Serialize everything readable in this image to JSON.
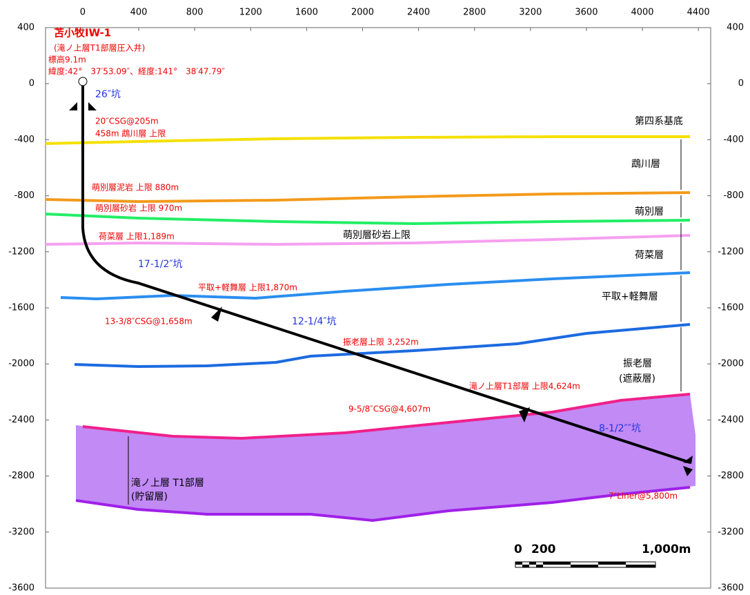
{
  "axes": {
    "xlim": [
      -266,
      4488
    ],
    "ylim": [
      -3600,
      400
    ],
    "xticks": [
      0,
      400,
      800,
      1200,
      1600,
      2000,
      2400,
      2800,
      3200,
      3600,
      4000,
      4400
    ],
    "yticks": [
      400,
      0,
      -400,
      -800,
      -1200,
      -1600,
      -2000,
      -2400,
      -2800,
      -3200,
      -3600
    ]
  },
  "well": {
    "name": "苫小牧IW-1",
    "purpose": "(滝ノ上層T1部層圧入井)",
    "elevation": "標高9.1m",
    "coords": "緯度:42°　37′53.09″、経度:141°　38′47.79″"
  },
  "holes": [
    "26″坑",
    "17-1/2″坑",
    "12-1/4″坑",
    "8-1/2″″坑"
  ],
  "annotations": [
    "20″CSG@205m",
    "458m 鵡川層  上限",
    "萌別層泥岩  上限 880m",
    "萌別層砂岩  上限 970m",
    "荷菜層  上限1,189m",
    "平取+軽舞層  上限1,870m",
    "13-3/8″CSG@1,658m",
    "振老層上限  3,252m",
    "滝ノ上層T1部層  上限4,624m",
    "9-5/8″CSG@4,607m",
    "7″Liner@5,800m"
  ],
  "horizon_label": "萌別層砂岩上限",
  "formations": [
    "第四系基底",
    "鵡川層",
    "萌別層",
    "荷菜層",
    "平取+軽舞層",
    "振老層",
    "(遮蔽層)",
    "滝ノ上層  T1部層",
    "(貯留層)"
  ],
  "scale": [
    "0",
    "200",
    "1,000m"
  ]
}
